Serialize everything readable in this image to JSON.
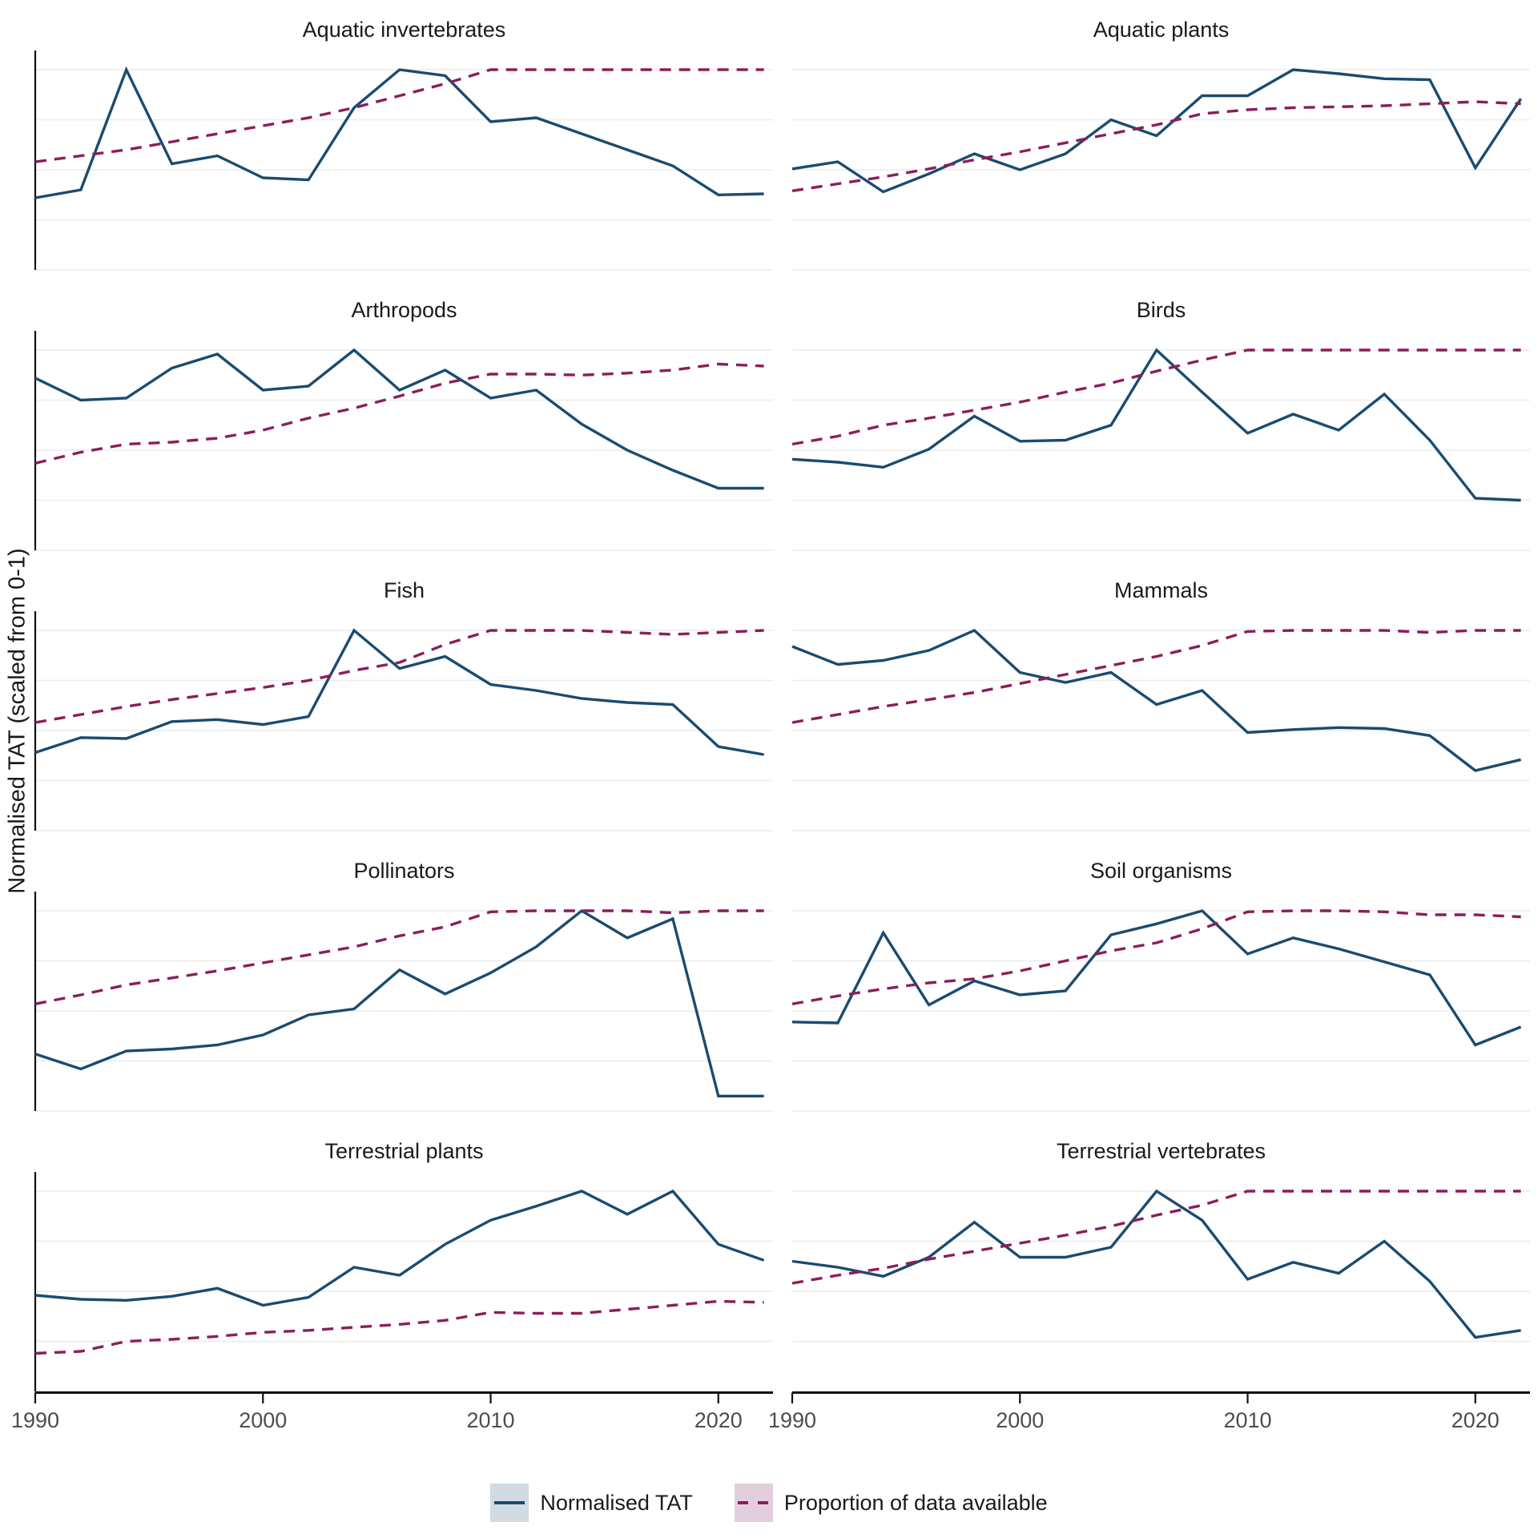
{
  "figure": {
    "y_axis_label": "Normalised TAT (scaled from 0-1)"
  },
  "colors": {
    "tat_line": "#1a4b70",
    "prop_line": "#8c1d5b",
    "tat_key_fill": "#d2dae2",
    "prop_key_fill": "#e3cfdc",
    "gridline": "#ececec",
    "axis_line": "#111111",
    "tick_text": "#4d4d4d",
    "title_text": "#1a1a1a"
  },
  "x_axis": {
    "tick_labels": [
      "1990",
      "2000",
      "2010",
      "2020"
    ],
    "tick_years": [
      1990,
      2000,
      2010,
      2020
    ]
  },
  "legend": {
    "items": [
      {
        "label": "Normalised TAT",
        "style": "solid"
      },
      {
        "label": "Proportion of data available",
        "style": "dashed"
      }
    ]
  },
  "chart_data": [
    {
      "type": "line",
      "title": "Aquatic invertebrates",
      "x": [
        1990,
        1992,
        1994,
        1996,
        1998,
        2000,
        2002,
        2004,
        2006,
        2008,
        2010,
        2012,
        2014,
        2016,
        2018,
        2020,
        2022
      ],
      "xlim": [
        1990,
        2022.4
      ],
      "ylim": [
        0,
        1.09
      ],
      "grid": "horizontal-major-0.25",
      "series": [
        {
          "name": "Normalised TAT",
          "style": "solid",
          "values": [
            0.36,
            0.4,
            1.0,
            0.53,
            0.57,
            0.46,
            0.45,
            0.81,
            1.0,
            0.97,
            0.74,
            0.76,
            0.68,
            0.6,
            0.52,
            0.375,
            0.38
          ]
        },
        {
          "name": "Proportion of data available",
          "style": "dashed",
          "values": [
            0.54,
            0.57,
            0.6,
            0.64,
            0.68,
            0.72,
            0.76,
            0.81,
            0.87,
            0.93,
            1.0,
            1.0,
            1.0,
            1.0,
            1.0,
            1.0,
            1.0
          ]
        }
      ]
    },
    {
      "type": "line",
      "title": "Aquatic plants",
      "x": [
        1990,
        1992,
        1994,
        1996,
        1998,
        2000,
        2002,
        2004,
        2006,
        2008,
        2010,
        2012,
        2014,
        2016,
        2018,
        2020,
        2022
      ],
      "xlim": [
        1990,
        2022.4
      ],
      "ylim": [
        0,
        1.09
      ],
      "grid": "horizontal-major-0.25",
      "series": [
        {
          "name": "Normalised TAT",
          "style": "solid",
          "values": [
            0.505,
            0.54,
            0.39,
            0.48,
            0.58,
            0.5,
            0.58,
            0.75,
            0.67,
            0.87,
            0.87,
            1.0,
            0.98,
            0.955,
            0.95,
            0.51,
            0.855
          ]
        },
        {
          "name": "Proportion of data available",
          "style": "dashed",
          "values": [
            0.395,
            0.43,
            0.465,
            0.505,
            0.55,
            0.59,
            0.635,
            0.68,
            0.725,
            0.78,
            0.8,
            0.81,
            0.815,
            0.82,
            0.83,
            0.84,
            0.83
          ]
        }
      ]
    },
    {
      "type": "line",
      "title": "Arthropods",
      "x": [
        1990,
        1992,
        1994,
        1996,
        1998,
        2000,
        2002,
        2004,
        2006,
        2008,
        2010,
        2012,
        2014,
        2016,
        2018,
        2020,
        2022
      ],
      "xlim": [
        1990,
        2022.4
      ],
      "ylim": [
        0,
        1.09
      ],
      "grid": "horizontal-major-0.25",
      "series": [
        {
          "name": "Normalised TAT",
          "style": "solid",
          "values": [
            0.86,
            0.75,
            0.76,
            0.91,
            0.98,
            0.8,
            0.82,
            1.0,
            0.8,
            0.9,
            0.76,
            0.8,
            0.63,
            0.5,
            0.4,
            0.31,
            0.31
          ]
        },
        {
          "name": "Proportion of data available",
          "style": "dashed",
          "values": [
            0.435,
            0.49,
            0.53,
            0.54,
            0.56,
            0.6,
            0.66,
            0.71,
            0.77,
            0.835,
            0.88,
            0.88,
            0.875,
            0.885,
            0.9,
            0.93,
            0.92
          ]
        }
      ]
    },
    {
      "type": "line",
      "title": "Birds",
      "x": [
        1990,
        1992,
        1994,
        1996,
        1998,
        2000,
        2002,
        2004,
        2006,
        2008,
        2010,
        2012,
        2014,
        2016,
        2018,
        2020,
        2022
      ],
      "xlim": [
        1990,
        2022.4
      ],
      "ylim": [
        0,
        1.09
      ],
      "grid": "horizontal-major-0.25",
      "series": [
        {
          "name": "Normalised TAT",
          "style": "solid",
          "values": [
            0.455,
            0.44,
            0.415,
            0.505,
            0.67,
            0.545,
            0.55,
            0.625,
            1.0,
            0.79,
            0.585,
            0.68,
            0.6,
            0.78,
            0.55,
            0.26,
            0.25
          ]
        },
        {
          "name": "Proportion of data available",
          "style": "dashed",
          "values": [
            0.53,
            0.57,
            0.625,
            0.66,
            0.7,
            0.74,
            0.79,
            0.835,
            0.895,
            0.95,
            1.0,
            1.0,
            1.0,
            1.0,
            1.0,
            1.0,
            1.0
          ]
        }
      ]
    },
    {
      "type": "line",
      "title": "Fish",
      "x": [
        1990,
        1992,
        1994,
        1996,
        1998,
        2000,
        2002,
        2004,
        2006,
        2008,
        2010,
        2012,
        2014,
        2016,
        2018,
        2020,
        2022
      ],
      "xlim": [
        1990,
        2022.4
      ],
      "ylim": [
        0,
        1.09
      ],
      "grid": "horizontal-major-0.25",
      "series": [
        {
          "name": "Normalised TAT",
          "style": "solid",
          "values": [
            0.39,
            0.465,
            0.46,
            0.545,
            0.555,
            0.53,
            0.57,
            1.0,
            0.81,
            0.87,
            0.73,
            0.7,
            0.66,
            0.64,
            0.63,
            0.42,
            0.38
          ]
        },
        {
          "name": "Proportion of data available",
          "style": "dashed",
          "values": [
            0.54,
            0.58,
            0.62,
            0.655,
            0.685,
            0.715,
            0.75,
            0.8,
            0.84,
            0.93,
            1.0,
            1.0,
            1.0,
            0.99,
            0.98,
            0.99,
            1.0
          ]
        }
      ]
    },
    {
      "type": "line",
      "title": "Mammals",
      "x": [
        1990,
        1992,
        1994,
        1996,
        1998,
        2000,
        2002,
        2004,
        2006,
        2008,
        2010,
        2012,
        2014,
        2016,
        2018,
        2020,
        2022
      ],
      "xlim": [
        1990,
        2022.4
      ],
      "ylim": [
        0,
        1.09
      ],
      "grid": "horizontal-major-0.25",
      "series": [
        {
          "name": "Normalised TAT",
          "style": "solid",
          "values": [
            0.92,
            0.83,
            0.85,
            0.9,
            1.0,
            0.79,
            0.74,
            0.79,
            0.63,
            0.7,
            0.49,
            0.505,
            0.515,
            0.51,
            0.475,
            0.3,
            0.355
          ]
        },
        {
          "name": "Proportion of data available",
          "style": "dashed",
          "values": [
            0.54,
            0.58,
            0.62,
            0.655,
            0.69,
            0.735,
            0.78,
            0.825,
            0.87,
            0.925,
            0.995,
            1.0,
            1.0,
            1.0,
            0.99,
            1.0,
            1.0
          ]
        }
      ]
    },
    {
      "type": "line",
      "title": "Pollinators",
      "x": [
        1990,
        1992,
        1994,
        1996,
        1998,
        2000,
        2002,
        2004,
        2006,
        2008,
        2010,
        2012,
        2014,
        2016,
        2018,
        2020,
        2022
      ],
      "xlim": [
        1990,
        2022.4
      ],
      "ylim": [
        0,
        1.09
      ],
      "grid": "horizontal-major-0.25",
      "series": [
        {
          "name": "Normalised TAT",
          "style": "solid",
          "values": [
            0.285,
            0.21,
            0.3,
            0.31,
            0.33,
            0.38,
            0.48,
            0.51,
            0.705,
            0.585,
            0.69,
            0.82,
            1.0,
            0.865,
            0.96,
            0.075,
            0.075
          ]
        },
        {
          "name": "Proportion of data available",
          "style": "dashed",
          "values": [
            0.535,
            0.58,
            0.63,
            0.665,
            0.7,
            0.74,
            0.78,
            0.82,
            0.875,
            0.92,
            0.995,
            1.0,
            1.0,
            1.0,
            0.99,
            1.0,
            1.0
          ]
        }
      ]
    },
    {
      "type": "line",
      "title": "Soil organisms",
      "x": [
        1990,
        1992,
        1994,
        1996,
        1998,
        2000,
        2002,
        2004,
        2006,
        2008,
        2010,
        2012,
        2014,
        2016,
        2018,
        2020,
        2022
      ],
      "xlim": [
        1990,
        2022.4
      ],
      "ylim": [
        0,
        1.09
      ],
      "grid": "horizontal-major-0.25",
      "series": [
        {
          "name": "Normalised TAT",
          "style": "solid",
          "values": [
            0.445,
            0.44,
            0.89,
            0.53,
            0.65,
            0.58,
            0.6,
            0.88,
            0.935,
            1.0,
            0.785,
            0.865,
            0.81,
            0.745,
            0.68,
            0.33,
            0.42
          ]
        },
        {
          "name": "Proportion of data available",
          "style": "dashed",
          "values": [
            0.535,
            0.575,
            0.61,
            0.64,
            0.66,
            0.7,
            0.75,
            0.8,
            0.84,
            0.91,
            0.995,
            1.0,
            1.0,
            0.995,
            0.98,
            0.98,
            0.97
          ]
        }
      ]
    },
    {
      "type": "line",
      "title": "Terrestrial plants",
      "x": [
        1990,
        1992,
        1994,
        1996,
        1998,
        2000,
        2002,
        2004,
        2006,
        2008,
        2010,
        2012,
        2014,
        2016,
        2018,
        2020,
        2022
      ],
      "xlim": [
        1990,
        2022.4
      ],
      "ylim": [
        0,
        1.09
      ],
      "grid": "horizontal-major-0.25",
      "series": [
        {
          "name": "Normalised TAT",
          "style": "solid",
          "values": [
            0.48,
            0.46,
            0.455,
            0.475,
            0.515,
            0.43,
            0.47,
            0.62,
            0.58,
            0.735,
            0.855,
            0.925,
            1.0,
            0.885,
            1.0,
            0.735,
            0.655
          ]
        },
        {
          "name": "Proportion of data available",
          "style": "dashed",
          "values": [
            0.19,
            0.2,
            0.25,
            0.26,
            0.275,
            0.295,
            0.305,
            0.32,
            0.335,
            0.355,
            0.395,
            0.39,
            0.39,
            0.41,
            0.43,
            0.45,
            0.445
          ]
        }
      ]
    },
    {
      "type": "line",
      "title": "Terrestrial vertebrates",
      "x": [
        1990,
        1992,
        1994,
        1996,
        1998,
        2000,
        2002,
        2004,
        2006,
        2008,
        2010,
        2012,
        2014,
        2016,
        2018,
        2020,
        2022
      ],
      "xlim": [
        1990,
        2022.4
      ],
      "ylim": [
        0,
        1.09
      ],
      "grid": "horizontal-major-0.25",
      "series": [
        {
          "name": "Normalised TAT",
          "style": "solid",
          "values": [
            0.65,
            0.62,
            0.575,
            0.67,
            0.845,
            0.67,
            0.67,
            0.72,
            1.0,
            0.855,
            0.56,
            0.645,
            0.59,
            0.75,
            0.55,
            0.27,
            0.305
          ]
        },
        {
          "name": "Proportion of data available",
          "style": "dashed",
          "values": [
            0.54,
            0.58,
            0.615,
            0.66,
            0.7,
            0.74,
            0.78,
            0.825,
            0.88,
            0.93,
            1.0,
            1.0,
            1.0,
            1.0,
            1.0,
            1.0,
            1.0
          ]
        }
      ]
    }
  ]
}
